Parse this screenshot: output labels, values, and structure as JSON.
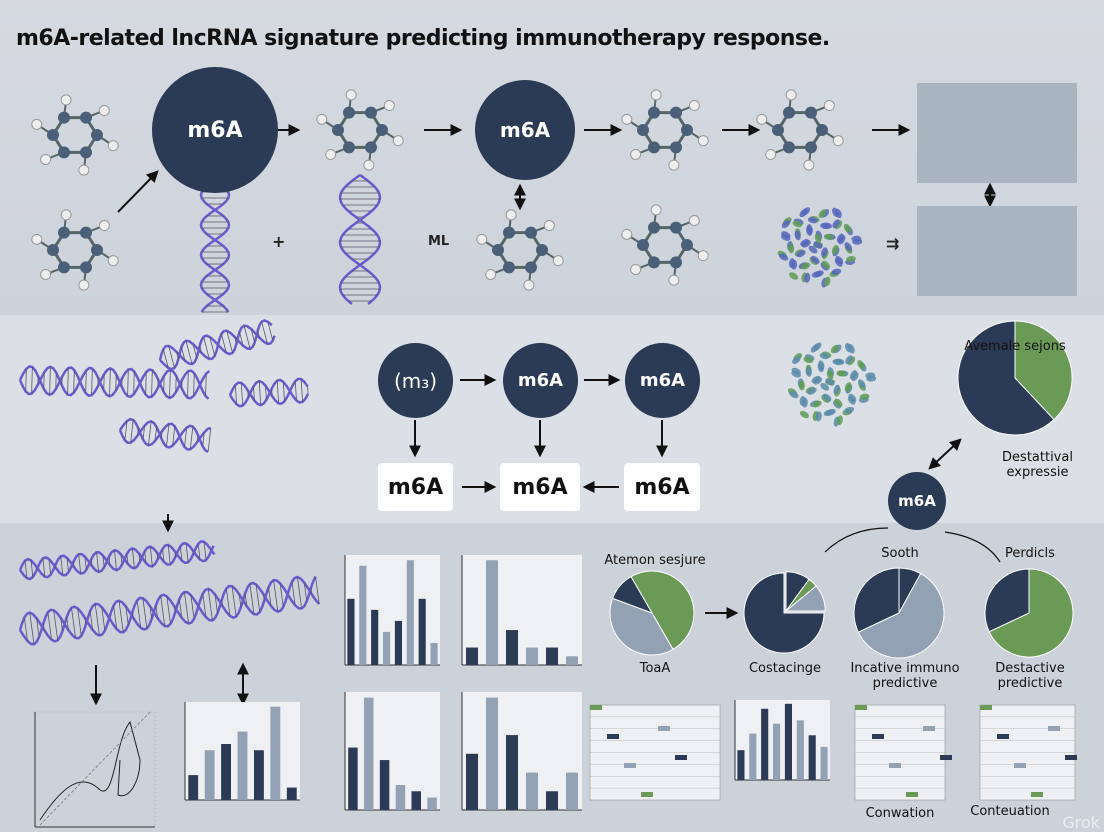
{
  "title": "m6A-related lncRNA signature predicting immunotherapy response.",
  "nodes": {
    "top_circle_1": "m6A",
    "top_circle_2": "m6A",
    "flow_start": "(m₃)",
    "flow_circle_2": "m6A",
    "flow_circle_3": "m6A",
    "flow_box_1": "m6A",
    "flow_box_2": "m6A",
    "flow_box_3": "m6A",
    "hub_circle": "m6A"
  },
  "symbols": {
    "plus_mark": "+",
    "ml_mark": "ML",
    "equals_mark": "⇉"
  },
  "labels": {
    "pie_top_title": "Avemale sejons",
    "pie_top_caption": "Destattival expressie",
    "pie1_title": "Atemon sesjure",
    "pie1_caption": "ToaA",
    "pie2_caption": "Costacinge",
    "pie3_title": "Sooth",
    "pie3_caption": "Incative immuno predictive",
    "pie4_title": "Perdicls",
    "pie4_caption": "Destactive predictive",
    "chart_c_caption": "Conwation",
    "chart_d_caption": "Conteuation",
    "watermark": "Grok"
  },
  "colors": {
    "navy": "#2b3a55",
    "green": "#6a9a56",
    "slate": "#93a1b5",
    "helix": "#6a5acd",
    "molecule": "#4a5f78"
  },
  "chart_data": [
    {
      "type": "pie",
      "title": "Avemale sejons",
      "values": [
        0.38,
        0.62
      ],
      "colors": [
        "green",
        "navy"
      ]
    },
    {
      "type": "pie",
      "title": "Atemon sesjure",
      "values": [
        0.5,
        0.39,
        0.11
      ],
      "colors": [
        "green",
        "slate",
        "navy"
      ]
    },
    {
      "type": "pie",
      "values": [
        0.1,
        0.04,
        0.11,
        0.75
      ],
      "colors": [
        "navy",
        "green",
        "slate",
        "navy"
      ]
    },
    {
      "type": "pie",
      "title": "Sooth",
      "values": [
        0.08,
        0.6,
        0.32
      ],
      "colors": [
        "navy",
        "slate",
        "navy"
      ]
    },
    {
      "type": "pie",
      "title": "Perdicls",
      "values": [
        0.68,
        0.32
      ],
      "colors": [
        "green",
        "navy"
      ]
    },
    {
      "type": "bar",
      "values": [
        6,
        9,
        5,
        3,
        4,
        9.5,
        6,
        2
      ]
    },
    {
      "type": "bar",
      "values": [
        1,
        6,
        2,
        1,
        1,
        0.5
      ]
    },
    {
      "type": "bar",
      "values": [
        5,
        9,
        4,
        2,
        1.5,
        1
      ]
    },
    {
      "type": "bar",
      "values": [
        3,
        6,
        4,
        2,
        1,
        2
      ]
    },
    {
      "type": "bar",
      "values": [
        2,
        4,
        4.5,
        5.5,
        4,
        7.5,
        1
      ]
    },
    {
      "type": "bar",
      "values": [
        1.8,
        2.8,
        4.3,
        3.4,
        4.6,
        3.6,
        2.7,
        2
      ]
    }
  ]
}
